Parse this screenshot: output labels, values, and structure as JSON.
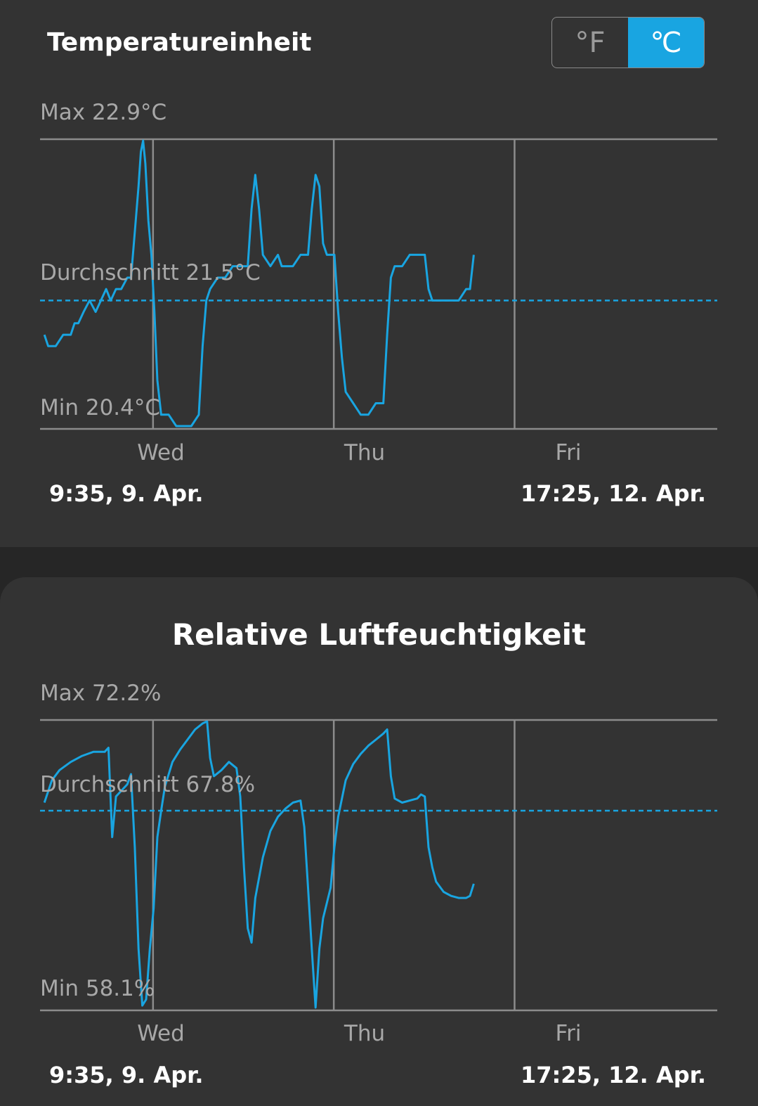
{
  "temperature": {
    "title": "Temperatureinheit",
    "unit_toggle": {
      "fahrenheit_label": "°F",
      "celsius_label": "℃",
      "selected": "celsius"
    },
    "max_label": "Max 22.9°C",
    "avg_label": "Durchschnitt 21.5°C",
    "min_label": "Min 20.4°C",
    "days": [
      "Wed",
      "Thu",
      "Fri"
    ],
    "range_start": "9:35,  9. Apr.",
    "range_end": "17:25,  12. Apr."
  },
  "humidity": {
    "title": "Relative Luftfeuchtigkeit",
    "max_label": "Max 72.2%",
    "avg_label": "Durchschnitt 67.8%",
    "min_label": "Min 58.1%",
    "days": [
      "Wed",
      "Thu",
      "Fri"
    ],
    "range_start": "9:35,  9. Apr.",
    "range_end": "17:25,  12. Apr."
  },
  "colors": {
    "line": "#19a5e1",
    "grid": "#8c8c8c",
    "card": "#333333",
    "background": "#262626"
  },
  "chart_data": [
    {
      "type": "line",
      "title": "Temperatureinheit",
      "x_unit": "hours since 9:35, 9. Apr.",
      "xlim": [
        -0.58,
        89.33
      ],
      "ylim": [
        20.4,
        22.9
      ],
      "avg": 21.5,
      "x_ticks": [
        {
          "label": "Wed",
          "x": 14.42
        },
        {
          "label": "Thu",
          "x": 38.42
        },
        {
          "label": "Fri",
          "x": 62.42
        }
      ],
      "series": [
        {
          "values": [
            [
              0,
              21.2
            ],
            [
              0.5,
              21.1
            ],
            [
              1.5,
              21.1
            ],
            [
              2.5,
              21.2
            ],
            [
              3.5,
              21.2
            ],
            [
              4,
              21.3
            ],
            [
              4.5,
              21.3
            ],
            [
              5.2,
              21.4
            ],
            [
              6,
              21.5
            ],
            [
              6.8,
              21.4
            ],
            [
              7.5,
              21.5
            ],
            [
              8.2,
              21.6
            ],
            [
              8.8,
              21.5
            ],
            [
              9.5,
              21.6
            ],
            [
              10.2,
              21.6
            ],
            [
              11,
              21.7
            ],
            [
              11.5,
              21.7
            ],
            [
              12,
              22.1
            ],
            [
              12.5,
              22.5
            ],
            [
              12.8,
              22.8
            ],
            [
              13.1,
              22.9
            ],
            [
              13.4,
              22.7
            ],
            [
              13.8,
              22.2
            ],
            [
              14.2,
              21.9
            ],
            [
              14.6,
              21.4
            ],
            [
              15,
              20.8
            ],
            [
              15.5,
              20.5
            ],
            [
              16.5,
              20.5
            ],
            [
              17.5,
              20.4
            ],
            [
              18.5,
              20.4
            ],
            [
              19.5,
              20.4
            ],
            [
              20.5,
              20.5
            ],
            [
              21,
              21.1
            ],
            [
              21.5,
              21.5
            ],
            [
              22,
              21.6
            ],
            [
              23,
              21.7
            ],
            [
              24,
              21.7
            ],
            [
              25,
              21.8
            ],
            [
              26,
              21.8
            ],
            [
              27,
              21.8
            ],
            [
              27.5,
              22.3
            ],
            [
              28,
              22.6
            ],
            [
              28.5,
              22.3
            ],
            [
              29,
              21.9
            ],
            [
              30,
              21.8
            ],
            [
              31,
              21.9
            ],
            [
              31.5,
              21.8
            ],
            [
              32,
              21.8
            ],
            [
              33,
              21.8
            ],
            [
              34,
              21.9
            ],
            [
              35,
              21.9
            ],
            [
              35.5,
              22.3
            ],
            [
              36,
              22.6
            ],
            [
              36.5,
              22.5
            ],
            [
              37,
              22.0
            ],
            [
              37.5,
              21.9
            ],
            [
              38.5,
              21.9
            ],
            [
              39,
              21.4
            ],
            [
              39.5,
              21.0
            ],
            [
              40,
              20.7
            ],
            [
              41,
              20.6
            ],
            [
              42,
              20.5
            ],
            [
              43,
              20.5
            ],
            [
              44,
              20.6
            ],
            [
              45,
              20.6
            ],
            [
              45.5,
              21.2
            ],
            [
              46,
              21.7
            ],
            [
              46.5,
              21.8
            ],
            [
              47.5,
              21.8
            ],
            [
              48.5,
              21.9
            ],
            [
              49.5,
              21.9
            ],
            [
              50.5,
              21.9
            ],
            [
              51,
              21.6
            ],
            [
              51.5,
              21.5
            ],
            [
              52.5,
              21.5
            ],
            [
              54,
              21.5
            ],
            [
              55,
              21.5
            ],
            [
              56,
              21.6
            ],
            [
              56.5,
              21.6
            ],
            [
              57,
              21.9
            ]
          ]
        }
      ]
    },
    {
      "type": "line",
      "title": "Relative Luftfeuchtigkeit",
      "x_unit": "hours since 9:35, 9. Apr.",
      "xlim": [
        -0.58,
        89.33
      ],
      "ylim": [
        58.1,
        72.2
      ],
      "avg": 67.8,
      "x_ticks": [
        {
          "label": "Wed",
          "x": 14.42
        },
        {
          "label": "Thu",
          "x": 38.42
        },
        {
          "label": "Fri",
          "x": 62.42
        }
      ],
      "series": [
        {
          "values": [
            [
              0,
              68.2
            ],
            [
              1,
              69.3
            ],
            [
              2,
              69.8
            ],
            [
              3.5,
              70.2
            ],
            [
              5,
              70.5
            ],
            [
              6.5,
              70.7
            ],
            [
              8,
              70.7
            ],
            [
              8.5,
              70.9
            ],
            [
              9,
              66.5
            ],
            [
              9.5,
              68.5
            ],
            [
              11,
              69.1
            ],
            [
              11.5,
              69.6
            ],
            [
              12,
              66
            ],
            [
              12.5,
              61
            ],
            [
              13,
              58.2
            ],
            [
              13.5,
              58.5
            ],
            [
              14,
              61
            ],
            [
              14.5,
              63
            ],
            [
              15,
              66.5
            ],
            [
              15.5,
              67.8
            ],
            [
              16,
              69
            ],
            [
              17,
              70.2
            ],
            [
              18,
              70.8
            ],
            [
              19,
              71.3
            ],
            [
              20,
              71.8
            ],
            [
              21,
              72.1
            ],
            [
              21.6,
              72.2
            ],
            [
              22,
              70.4
            ],
            [
              22.5,
              69.5
            ],
            [
              23.5,
              69.8
            ],
            [
              24.5,
              70.2
            ],
            [
              25.5,
              69.9
            ],
            [
              26,
              68.5
            ],
            [
              26.5,
              65
            ],
            [
              27,
              62
            ],
            [
              27.5,
              61.3
            ],
            [
              28,
              63.5
            ],
            [
              29,
              65.5
            ],
            [
              30,
              66.8
            ],
            [
              31,
              67.5
            ],
            [
              32,
              67.9
            ],
            [
              33,
              68.2
            ],
            [
              34,
              68.3
            ],
            [
              34.5,
              67
            ],
            [
              35,
              64
            ],
            [
              35.5,
              61
            ],
            [
              36,
              58.1
            ],
            [
              36.5,
              61
            ],
            [
              37,
              62.5
            ],
            [
              38,
              64
            ],
            [
              38.5,
              66
            ],
            [
              39,
              67.5
            ],
            [
              40,
              69.3
            ],
            [
              41,
              70.1
            ],
            [
              42,
              70.6
            ],
            [
              43,
              71
            ],
            [
              44,
              71.3
            ],
            [
              45,
              71.6
            ],
            [
              45.5,
              71.8
            ],
            [
              46,
              69.5
            ],
            [
              46.5,
              68.4
            ],
            [
              47.5,
              68.2
            ],
            [
              48.5,
              68.3
            ],
            [
              49.5,
              68.4
            ],
            [
              50,
              68.6
            ],
            [
              50.5,
              68.5
            ],
            [
              51,
              66
            ],
            [
              51.5,
              65
            ],
            [
              52,
              64.3
            ],
            [
              53,
              63.8
            ],
            [
              54,
              63.6
            ],
            [
              55,
              63.5
            ],
            [
              56,
              63.5
            ],
            [
              56.5,
              63.6
            ],
            [
              57,
              64.2
            ]
          ]
        }
      ]
    }
  ]
}
